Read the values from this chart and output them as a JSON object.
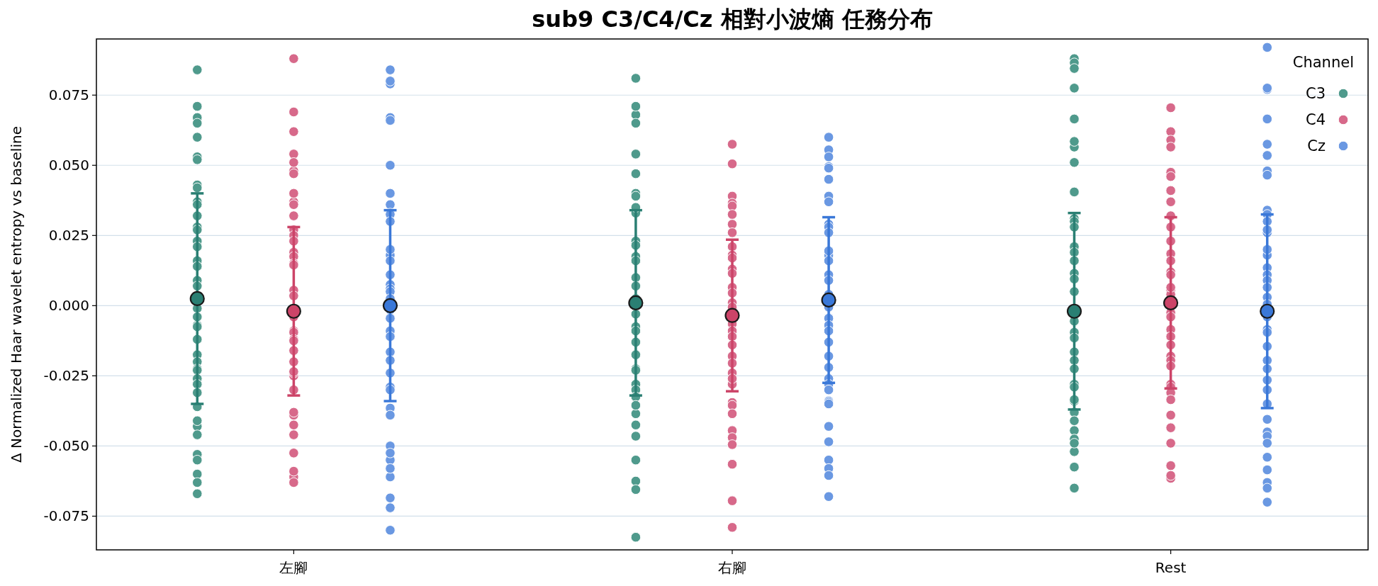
{
  "chart_data": {
    "type": "scatter",
    "title": "sub9 C3/C4/Cz 相對小波熵 任務分布",
    "ylabel": "Δ Normalized Haar wavelet entropy vs baseline",
    "legend_title": "Channel",
    "legend": "top right",
    "grid": "y",
    "marker": "circle",
    "categories": [
      "左腳",
      "右腳",
      "Rest"
    ],
    "ylim": [
      -0.087,
      0.095
    ],
    "yticks": [
      {
        "value": -0.075,
        "label": "-0.075"
      },
      {
        "value": -0.05,
        "label": "-0.050"
      },
      {
        "value": -0.025,
        "label": "-0.025"
      },
      {
        "value": 0,
        "label": "0.000"
      },
      {
        "value": 0.025,
        "label": "0.025"
      },
      {
        "value": 0.05,
        "label": "0.050"
      },
      {
        "value": 0.075,
        "label": "0.075"
      }
    ],
    "series": [
      {
        "name": "C3",
        "color": "#4f9a8c",
        "x": [
          "左腳",
          "左腳",
          "左腳",
          "左腳",
          "左腳",
          "左腳",
          "左腳",
          "左腳",
          "左腳",
          "左腳",
          "左腳",
          "左腳",
          "左腳",
          "左腳",
          "左腳",
          "左腳",
          "左腳",
          "左腳",
          "左腳",
          "左腳",
          "左腳",
          "左腳",
          "左腳",
          "左腳",
          "左腳",
          "左腳",
          "左腳",
          "左腳",
          "左腳",
          "左腳",
          "左腳",
          "左腳",
          "左腳",
          "左腳",
          "左腳",
          "左腳",
          "左腳",
          "左腳",
          "左腳",
          "左腳",
          "左腳",
          "右腳",
          "右腳",
          "右腳",
          "右腳",
          "右腳",
          "右腳",
          "右腳",
          "右腳",
          "右腳",
          "右腳",
          "右腳",
          "右腳",
          "右腳",
          "右腳",
          "右腳",
          "右腳",
          "右腳",
          "右腳",
          "右腳",
          "右腳",
          "右腳",
          "右腳",
          "右腳",
          "右腳",
          "右腳",
          "右腳",
          "右腳",
          "右腳",
          "右腳",
          "右腳",
          "右腳",
          "右腳",
          "右腳",
          "右腳",
          "右腳",
          "Rest",
          "Rest",
          "Rest",
          "Rest",
          "Rest",
          "Rest",
          "Rest",
          "Rest",
          "Rest",
          "Rest",
          "Rest",
          "Rest",
          "Rest",
          "Rest",
          "Rest",
          "Rest",
          "Rest",
          "Rest",
          "Rest",
          "Rest",
          "Rest",
          "Rest",
          "Rest",
          "Rest",
          "Rest",
          "Rest",
          "Rest",
          "Rest",
          "Rest",
          "Rest",
          "Rest",
          "Rest",
          "Rest",
          "Rest",
          "Rest",
          "Rest"
        ],
        "values": [
          0.084,
          0.071,
          0.067,
          0.065,
          0.06,
          0.053,
          0.052,
          0.043,
          0.042,
          0.037,
          0.036,
          0.032,
          0.028,
          0.027,
          0.023,
          0.021,
          0.016,
          0.014,
          0.009,
          0.007,
          -0.001,
          -0.007,
          -0.0075,
          -0.004,
          -0.012,
          -0.0175,
          -0.02,
          -0.0225,
          -0.023,
          -0.026,
          -0.028,
          -0.031,
          -0.036,
          -0.043,
          -0.041,
          -0.046,
          -0.053,
          -0.055,
          -0.06,
          -0.063,
          -0.067,
          0.081,
          0.068,
          0.071,
          0.065,
          0.054,
          0.047,
          0.04,
          0.039,
          0.033,
          0.035,
          0.0175,
          0.023,
          0.0215,
          0.016,
          0.01,
          0.007,
          0.0025,
          -0.003,
          -0.0075,
          -0.009,
          -0.013,
          -0.0175,
          -0.0225,
          -0.023,
          -0.028,
          -0.03,
          -0.0325,
          -0.0385,
          -0.0425,
          -0.0465,
          -0.055,
          -0.0625,
          -0.0655,
          -0.0825,
          -0.0355,
          0.088,
          0.0865,
          0.0845,
          0.0775,
          0.0665,
          0.0565,
          0.0585,
          0.051,
          0.0405,
          0.031,
          0.03,
          0.028,
          0.021,
          0.019,
          0.016,
          0.0115,
          0.0095,
          0.005,
          -0.0055,
          -0.0095,
          -0.0115,
          -0.0165,
          -0.0195,
          -0.0225,
          -0.028,
          -0.029,
          -0.034,
          -0.0335,
          -0.038,
          -0.041,
          -0.0445,
          -0.0475,
          -0.052,
          -0.0575,
          -0.065,
          -0.049
        ]
      },
      {
        "name": "C4",
        "color": "#d7698a",
        "x": [
          "左腳",
          "左腳",
          "左腳",
          "左腳",
          "左腳",
          "左腳",
          "左腳",
          "左腳",
          "左腳",
          "左腳",
          "左腳",
          "左腳",
          "左腳",
          "左腳",
          "左腳",
          "左腳",
          "左腳",
          "左腳",
          "左腳",
          "左腳",
          "左腳",
          "左腳",
          "左腳",
          "左腳",
          "左腳",
          "左腳",
          "左腳",
          "左腳",
          "左腳",
          "左腳",
          "左腳",
          "左腳",
          "左腳",
          "左腳",
          "左腳",
          "左腳",
          "左腳",
          "左腳",
          "左腳",
          "右腳",
          "右腳",
          "右腳",
          "右腳",
          "右腳",
          "右腳",
          "右腳",
          "右腳",
          "右腳",
          "右腳",
          "右腳",
          "右腳",
          "右腳",
          "右腳",
          "右腳",
          "右腳",
          "右腳",
          "右腳",
          "右腳",
          "右腳",
          "右腳",
          "右腳",
          "右腳",
          "右腳",
          "右腳",
          "右腳",
          "右腳",
          "右腳",
          "右腳",
          "右腳",
          "右腳",
          "右腳",
          "右腳",
          "右腳",
          "右腳",
          "Rest",
          "Rest",
          "Rest",
          "Rest",
          "Rest",
          "Rest",
          "Rest",
          "Rest",
          "Rest",
          "Rest",
          "Rest",
          "Rest",
          "Rest",
          "Rest",
          "Rest",
          "Rest",
          "Rest",
          "Rest",
          "Rest",
          "Rest",
          "Rest",
          "Rest",
          "Rest",
          "Rest",
          "Rest",
          "Rest",
          "Rest",
          "Rest",
          "Rest",
          "Rest",
          "Rest",
          "Rest",
          "Rest",
          "Rest",
          "Rest",
          "Rest"
        ],
        "values": [
          0.088,
          0.069,
          0.062,
          0.054,
          0.048,
          0.051,
          0.047,
          0.037,
          0.04,
          0.036,
          0.032,
          0.027,
          0.025,
          0.023,
          0.019,
          0.0175,
          0.015,
          0.0145,
          0.0055,
          0.0035,
          -0.004,
          -0.009,
          -0.0095,
          -0.012,
          -0.0125,
          -0.016,
          -0.02,
          -0.025,
          -0.024,
          -0.03,
          -0.039,
          -0.038,
          -0.0425,
          -0.046,
          -0.0525,
          -0.061,
          -0.059,
          -0.063,
          -0.0235,
          0.0575,
          0.0505,
          0.039,
          0.0365,
          0.0355,
          0.0325,
          0.029,
          0.026,
          0.021,
          0.018,
          0.013,
          0.0115,
          0.0065,
          0.0045,
          0.001,
          -0.0005,
          -0.0065,
          -0.009,
          -0.011,
          -0.014,
          -0.018,
          -0.0205,
          -0.024,
          -0.028,
          -0.026,
          -0.0345,
          -0.0355,
          -0.0385,
          -0.0445,
          -0.047,
          -0.0495,
          -0.0565,
          -0.0695,
          -0.079,
          0.017,
          0.0705,
          0.062,
          0.059,
          0.0565,
          0.0475,
          0.046,
          0.041,
          0.037,
          0.032,
          0.028,
          0.023,
          0.0185,
          0.016,
          0.012,
          0.011,
          0.0055,
          0.004,
          0.0065,
          -0.0025,
          -0.004,
          -0.0085,
          -0.011,
          -0.014,
          -0.018,
          -0.0195,
          -0.0215,
          -0.028,
          -0.029,
          -0.031,
          -0.0335,
          -0.039,
          -0.0435,
          -0.049,
          -0.057,
          -0.0615,
          -0.0605
        ]
      },
      {
        "name": "Cz",
        "color": "#6a98e2",
        "x": [
          "左腳",
          "左腳",
          "左腳",
          "左腳",
          "左腳",
          "左腳",
          "左腳",
          "左腳",
          "左腳",
          "左腳",
          "左腳",
          "左腳",
          "左腳",
          "左腳",
          "左腳",
          "左腳",
          "左腳",
          "左腳",
          "左腳",
          "左腳",
          "左腳",
          "左腳",
          "左腳",
          "左腳",
          "左腳",
          "左腳",
          "左腳",
          "左腳",
          "左腳",
          "左腳",
          "左腳",
          "左腳",
          "左腳",
          "左腳",
          "左腳",
          "左腳",
          "左腳",
          "左腳",
          "右腳",
          "右腳",
          "右腳",
          "右腳",
          "右腳",
          "右腳",
          "右腳",
          "右腳",
          "右腳",
          "右腳",
          "右腳",
          "右腳",
          "右腳",
          "右腳",
          "右腳",
          "右腳",
          "右腳",
          "右腳",
          "右腳",
          "右腳",
          "右腳",
          "右腳",
          "右腳",
          "右腳",
          "右腳",
          "右腳",
          "右腳",
          "右腳",
          "右腳",
          "右腳",
          "右腳",
          "右腳",
          "右腳",
          "右腳",
          "右腳",
          "右腳",
          "Rest",
          "Rest",
          "Rest",
          "Rest",
          "Rest",
          "Rest",
          "Rest",
          "Rest",
          "Rest",
          "Rest",
          "Rest",
          "Rest",
          "Rest",
          "Rest",
          "Rest",
          "Rest",
          "Rest",
          "Rest",
          "Rest",
          "Rest",
          "Rest",
          "Rest",
          "Rest",
          "Rest",
          "Rest",
          "Rest",
          "Rest",
          "Rest",
          "Rest",
          "Rest",
          "Rest",
          "Rest",
          "Rest",
          "Rest",
          "Rest",
          "Rest",
          "Rest",
          "Rest",
          "Rest"
        ],
        "values": [
          0.084,
          0.079,
          0.08,
          0.067,
          0.066,
          0.05,
          0.04,
          0.036,
          0.033,
          0.0325,
          0.03,
          0.018,
          0.02,
          0.016,
          0.011,
          0.0075,
          0.006,
          0.005,
          0.0025,
          -0.0015,
          -0.0045,
          -0.009,
          -0.011,
          -0.0165,
          -0.0195,
          -0.024,
          -0.029,
          -0.03,
          -0.0365,
          -0.039,
          -0.05,
          -0.055,
          -0.0525,
          -0.061,
          -0.058,
          -0.0685,
          -0.072,
          -0.08,
          0.06,
          0.0555,
          0.053,
          0.0495,
          0.049,
          0.045,
          0.039,
          0.037,
          0.029,
          0.028,
          0.026,
          0.018,
          0.0195,
          0.016,
          0.011,
          0.009,
          0.004,
          -0.0005,
          -0.0045,
          -0.007,
          -0.009,
          -0.013,
          -0.018,
          -0.022,
          -0.026,
          -0.028,
          -0.03,
          -0.034,
          -0.0345,
          -0.035,
          -0.043,
          -0.0485,
          -0.055,
          -0.058,
          -0.068,
          -0.0605,
          0.092,
          0.077,
          0.0775,
          0.0665,
          0.0575,
          0.0535,
          0.048,
          0.0465,
          0.034,
          0.0325,
          0.03,
          0.026,
          0.027,
          0.018,
          0.02,
          0.0135,
          0.011,
          0.009,
          0.0065,
          0.003,
          0.0005,
          -0.004,
          -0.0085,
          -0.0095,
          -0.0145,
          -0.0195,
          -0.0225,
          -0.0265,
          -0.03,
          -0.035,
          -0.0405,
          -0.045,
          -0.0465,
          -0.049,
          -0.054,
          -0.0585,
          -0.063,
          -0.065,
          -0.07
        ]
      },
      {
        "color": "#2a7f73",
        "x": [
          "左腳",
          "右腳",
          "Rest"
        ],
        "values": [
          0.0025,
          0.001,
          -0.002
        ],
        "errors": [
          0.0375,
          0.033,
          0.035
        ]
      },
      {
        "color": "#cc4468",
        "x": [
          "左腳",
          "右腳",
          "Rest"
        ],
        "values": [
          -0.002,
          -0.0035,
          0.001
        ],
        "errors": [
          0.03,
          0.027,
          0.0305
        ]
      },
      {
        "color": "#3a78d8",
        "x": [
          "左腳",
          "右腳",
          "Rest"
        ],
        "values": [
          0,
          0.002,
          -0.002
        ],
        "errors": [
          0.034,
          0.0295,
          0.0345
        ]
      }
    ]
  }
}
